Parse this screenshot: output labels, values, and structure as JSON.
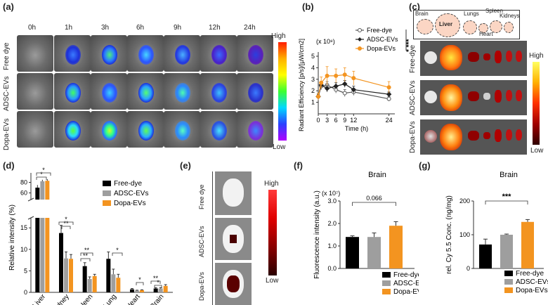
{
  "panels": {
    "a": "(a)",
    "b": "(b)",
    "c": "(c)",
    "d": "(d)",
    "e": "(e)",
    "f": "(f)",
    "g": "(g)"
  },
  "panel_a": {
    "timepoints": [
      "0h",
      "1h",
      "3h",
      "6h",
      "9h",
      "12h",
      "24h"
    ],
    "groups": [
      "Free dye",
      "ADSC-EVs",
      "Dopa-EVs"
    ],
    "scale_high": "High",
    "scale_low": "Low"
  },
  "panel_c": {
    "organs": [
      "Brain",
      "Liver",
      "Lungs",
      "Spleen",
      "Kidneys",
      "Heart"
    ],
    "groups": [
      "Free-dye",
      "ADSC-EVs",
      "Dopa-EVs"
    ],
    "scale_high": "High",
    "scale_low": "Low"
  },
  "panel_e": {
    "groups": [
      "Free dye",
      "ADSC-EVs",
      "Dopa-EVs"
    ],
    "scale_high": "High",
    "scale_low": "Low"
  },
  "colors": {
    "free_dye": "#000000",
    "adsc_evs": "#9e9e9e",
    "dopa_evs": "#f39420",
    "line_free": "#555555",
    "line_adsc": "#222222",
    "line_dopa": "#f39420"
  },
  "chart_data": [
    {
      "id": "b",
      "type": "line",
      "ylabel": "Radiant Efficiency [p/s]/[µW/cm2]",
      "yscale_note": "(x 10⁸)",
      "xlabel": "Time (h)",
      "xticks": [
        "0",
        "3",
        "6",
        "9",
        "12",
        "24"
      ],
      "yticks": [
        "1",
        "2",
        "3",
        "4",
        "5"
      ],
      "xlim": [
        0,
        26
      ],
      "ylim": [
        0,
        5
      ],
      "x": [
        0,
        1,
        3,
        6,
        9,
        12,
        24
      ],
      "series": [
        {
          "name": "Free-dye",
          "values": [
            1.5,
            2.4,
            2.5,
            2.1,
            1.8,
            1.9,
            1.3
          ],
          "err": [
            0.2,
            0.3,
            0.3,
            0.3,
            0.3,
            0.3,
            0.2
          ],
          "marker": "open"
        },
        {
          "name": "ADSC-EVs",
          "values": [
            1.5,
            2.5,
            2.2,
            2.4,
            2.6,
            2.1,
            1.7
          ],
          "err": [
            0.2,
            0.3,
            0.3,
            0.3,
            0.3,
            0.3,
            0.2
          ],
          "marker": "filled"
        },
        {
          "name": "Dopa-EVs",
          "values": [
            1.5,
            2.7,
            3.3,
            3.3,
            3.4,
            3.1,
            2.3
          ],
          "err": [
            0.3,
            0.5,
            0.8,
            0.6,
            0.6,
            0.6,
            0.5
          ],
          "marker": "orange"
        }
      ],
      "significance": "* ***"
    },
    {
      "id": "d",
      "type": "bar",
      "ylabel": "Relative intensity (%)",
      "categories": [
        "Liver",
        "Kidney",
        "Spleen",
        "Lung",
        "Heart",
        "Brain"
      ],
      "yticks_top": [
        "60",
        "80"
      ],
      "yticks_bottom": [
        "0",
        "5",
        "10",
        "15"
      ],
      "series": [
        {
          "name": "Free-dye",
          "values": [
            70,
            13.8,
            6.1,
            7.8,
            0.7,
            0.9
          ],
          "err": [
            5,
            1.8,
            0.8,
            1.6,
            0.2,
            0.2
          ]
        },
        {
          "name": "ADSC-EVs",
          "values": [
            82,
            7.9,
            3.1,
            4.2,
            0.4,
            0.9
          ],
          "err": [
            3,
            1.5,
            0.5,
            1.2,
            0.1,
            0.2
          ]
        },
        {
          "name": "Dopa-EVs",
          "values": [
            83,
            7.8,
            3.8,
            3.4,
            0.5,
            1.5
          ],
          "err": [
            3,
            1.0,
            0.4,
            0.8,
            0.1,
            0.3
          ]
        }
      ],
      "stars": [
        "*",
        "*",
        "**",
        "*",
        "**",
        "**",
        "*",
        "*",
        "**",
        "*"
      ]
    },
    {
      "id": "f",
      "type": "bar",
      "title": "Brain",
      "ylabel": "Fluorescence intensity (a.u.)",
      "yscale_note": "(x 10⁷)",
      "yticks": [
        "0.0",
        "1.0",
        "2.0",
        "3.0"
      ],
      "ylim": [
        0,
        3
      ],
      "categories": [
        "Free-dye",
        "ADSC-EVs",
        "Dopa-EVs"
      ],
      "values": [
        1.4,
        1.4,
        1.9
      ],
      "err": [
        0.05,
        0.18,
        0.18
      ],
      "pvalue": "0.066"
    },
    {
      "id": "g",
      "type": "bar",
      "title": "Brain",
      "ylabel": "rel. Cy 5.5 Conc. (ng/mg)",
      "yticks": [
        "0",
        "100",
        "200"
      ],
      "ylim": [
        0,
        200
      ],
      "categories": [
        "Free-dye",
        "ADSC-EVs",
        "Dopa-EVs"
      ],
      "values": [
        71,
        100,
        138
      ],
      "err": [
        16,
        2,
        7
      ],
      "significance": "***"
    }
  ]
}
